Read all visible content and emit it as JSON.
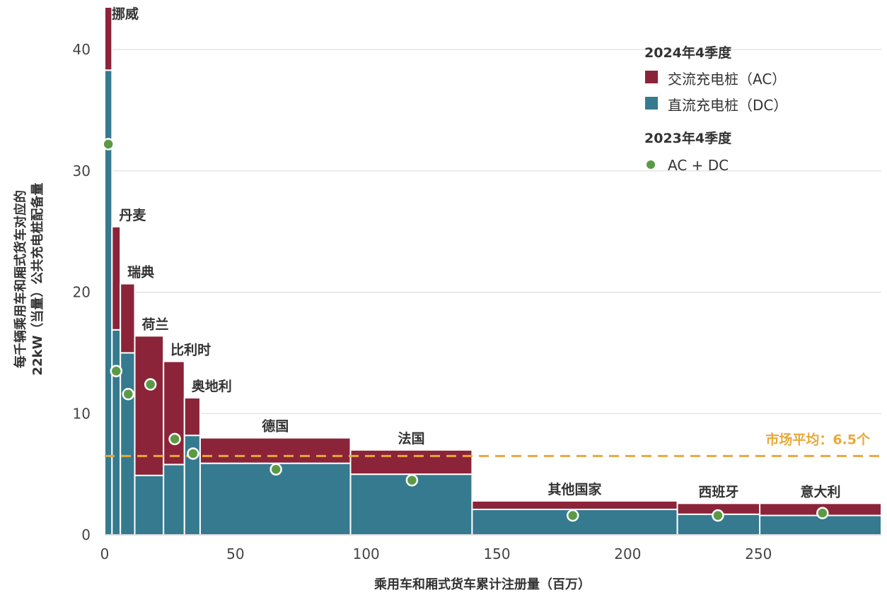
{
  "chart_data": {
    "type": "bar",
    "variant": "variable-width stacked (marimekko)",
    "xlabel": "乘用车和厢式货车累计注册量（百万）",
    "ylabel_line1": "每千辆乘用车和厢式货车对应的",
    "ylabel_line2": "22kW（当量）公共充电桩配备量",
    "xlim": [
      0,
      297
    ],
    "ylim": [
      0,
      43.5
    ],
    "xticks": [
      0,
      50,
      100,
      150,
      200,
      250
    ],
    "yticks": [
      0,
      10,
      20,
      30,
      40
    ],
    "grid": true,
    "legend": {
      "position": "top-right",
      "group1_title": "2024年4季度",
      "ac_label": "交流充电桩（AC）",
      "dc_label": "直流充电桩（DC）",
      "group2_title": "2023年4季度",
      "dot_label": "AC + DC"
    },
    "colors": {
      "ac": "#8b2439",
      "dc": "#357a8f",
      "dot": "#5b9a45",
      "avg": "#e8a93a",
      "grid": "#d9d9d9"
    },
    "market_average": {
      "value": 6.5,
      "label": "市场平均：6.5个"
    },
    "categories": [
      {
        "name": "挪威",
        "x0": 0,
        "x1": 2.8,
        "dc": 38.3,
        "ac": 5.2,
        "dot_2023": 32.2,
        "dot_x": 1.4
      },
      {
        "name": "丹麦",
        "x0": 2.8,
        "x1": 6.0,
        "dc": 16.9,
        "ac": 8.5,
        "dot_2023": 13.5,
        "dot_x": 4.4
      },
      {
        "name": "瑞典",
        "x0": 6.0,
        "x1": 11.5,
        "dc": 15.0,
        "ac": 5.7,
        "dot_2023": 11.6,
        "dot_x": 9.0
      },
      {
        "name": "荷兰",
        "x0": 11.5,
        "x1": 22.5,
        "dc": 4.9,
        "ac": 11.5,
        "dot_2023": 12.4,
        "dot_x": 17.5
      },
      {
        "name": "比利时",
        "x0": 22.5,
        "x1": 30.5,
        "dc": 5.8,
        "ac": 8.5,
        "dot_2023": 7.9,
        "dot_x": 26.8
      },
      {
        "name": "奥地利",
        "x0": 30.5,
        "x1": 36.5,
        "dc": 8.2,
        "ac": 3.1,
        "dot_2023": 6.7,
        "dot_x": 33.8
      },
      {
        "name": "德国",
        "x0": 36.5,
        "x1": 94.0,
        "dc": 5.9,
        "ac": 2.1,
        "dot_2023": 5.4,
        "dot_x": 65.5
      },
      {
        "name": "法国",
        "x0": 94.0,
        "x1": 140.5,
        "dc": 5.0,
        "ac": 2.0,
        "dot_2023": 4.5,
        "dot_x": 117.5
      },
      {
        "name": "其他国家",
        "x0": 140.5,
        "x1": 219.0,
        "dc": 2.1,
        "ac": 0.7,
        "dot_2023": 1.6,
        "dot_x": 179.0
      },
      {
        "name": "西班牙",
        "x0": 219.0,
        "x1": 250.5,
        "dc": 1.7,
        "ac": 0.9,
        "dot_2023": 1.6,
        "dot_x": 234.5
      },
      {
        "name": "意大利",
        "x0": 250.5,
        "x1": 297.0,
        "dc": 1.6,
        "ac": 1.0,
        "dot_2023": 1.8,
        "dot_x": 274.5
      }
    ]
  }
}
